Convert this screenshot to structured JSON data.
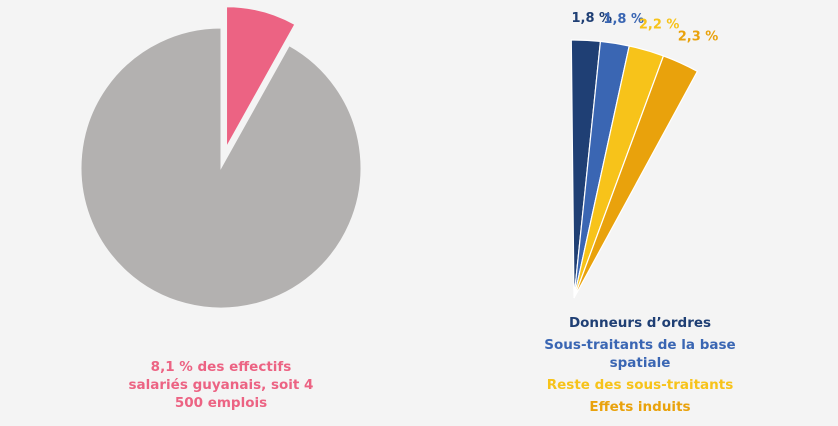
{
  "chart_data": [
    {
      "type": "pie",
      "values": [
        8.1,
        91.9
      ],
      "colors": [
        "#ec6383",
        "#b3b1b0"
      ],
      "explode": [
        true,
        false
      ],
      "annotation": "8,1 % des effectifs salariés guyanais, soit 4 500 emplois"
    },
    {
      "type": "fan",
      "categories": [
        "Donneurs d’ordres",
        "Sous-traitants de la base spatiale",
        "Reste des sous-traitants",
        "Effets induits"
      ],
      "values": [
        1.8,
        1.8,
        2.2,
        2.3
      ],
      "value_labels": [
        "1,8 %",
        "1,8 %",
        "2,2 %",
        "2,3 %"
      ],
      "colors": [
        "#1f3f74",
        "#3a66b3",
        "#f7c31a",
        "#e9a20c"
      ]
    }
  ]
}
